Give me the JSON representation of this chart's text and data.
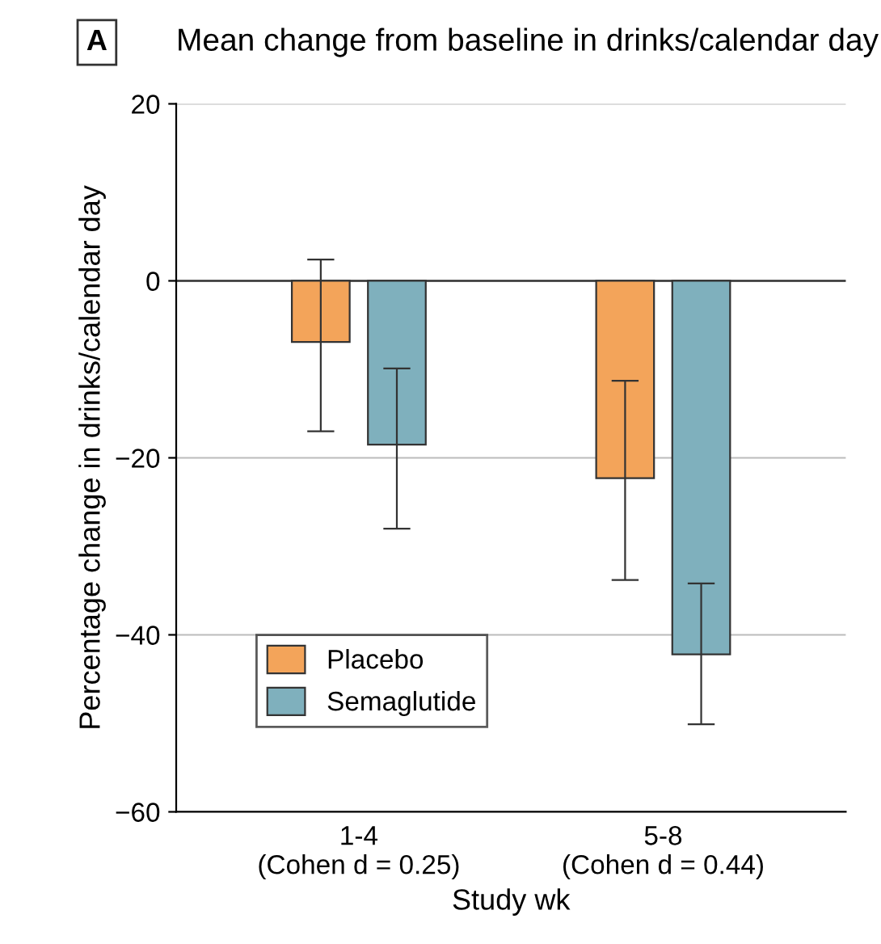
{
  "chart_data": {
    "type": "bar",
    "title": "Mean change from baseline in drinks/calendar day",
    "annotations": [
      "A"
    ],
    "xlabel": "Study wk",
    "ylabel": "Percentage change in drinks/calendar day",
    "categories": [
      "1-4\n(Cohen d = 0.25)",
      "5-8\n(Cohen d = 0.44)"
    ],
    "series": [
      {
        "name": "Placebo",
        "color": "#f3a45a",
        "values": [
          -6.9,
          -22.3
        ],
        "errors": [
          [
            -17.0,
            2.4
          ],
          [
            -33.8,
            -11.3
          ]
        ]
      },
      {
        "name": "Semaglutide",
        "color": "#7fb0bd",
        "values": [
          -18.5,
          -42.2
        ],
        "errors": [
          [
            -28.0,
            -9.9
          ],
          [
            -50.1,
            -34.2
          ]
        ]
      }
    ],
    "ylim": [
      -60,
      20
    ],
    "yticks": [
      -60,
      -40,
      -20,
      0,
      20
    ],
    "grid": "y",
    "legend": "bottom left",
    "ref_lines": [
      {
        "axis": "y",
        "value": 0,
        "color": "#333333"
      }
    ]
  }
}
